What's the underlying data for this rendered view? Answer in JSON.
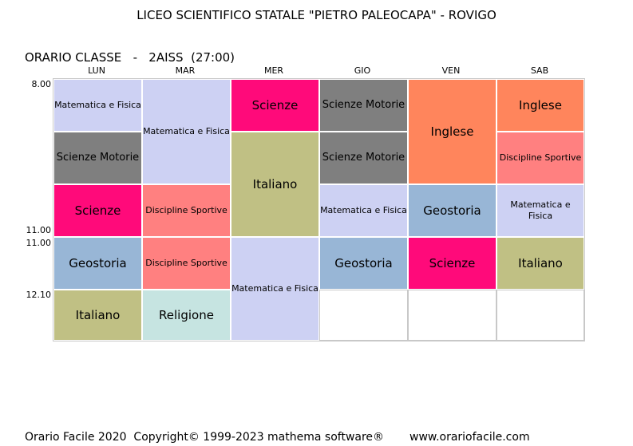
{
  "header": {
    "title": "LICEO SCIENTIFICO STATALE \"PIETRO PALEOCAPA\" - ROVIGO",
    "subtitle": "ORARIO CLASSE   -   2AISS  (27:00)"
  },
  "days": [
    "LUN",
    "MAR",
    "MER",
    "GIO",
    "VEN",
    "SAB"
  ],
  "times": {
    "start": "8.00",
    "end_first": "11.00",
    "start_second": "11.00",
    "later": "12.10"
  },
  "colors": {
    "matfis": "#cdd1f3",
    "motorie": "#7f7f7f",
    "scienze": "#ff0a7a",
    "sportive": "#ff8080",
    "geostoria": "#98b6d6",
    "italiano": "#c0c084",
    "religione": "#c6e4e1",
    "inglese": "#ff855c"
  },
  "schedule": {
    "lun": [
      "Matematica e Fisica",
      "Scienze  Motorie",
      "Scienze",
      "Geostoria",
      "Italiano"
    ],
    "mar": [
      "Matematica e Fisica",
      "Discipline Sportive",
      "Discipline Sportive",
      "Religione"
    ],
    "mer": [
      "Scienze",
      "Italiano",
      "Matematica e Fisica"
    ],
    "gio": [
      "Scienze  Motorie",
      "Scienze  Motorie",
      "Matematica e Fisica",
      "Geostoria"
    ],
    "ven": [
      "Inglese",
      "Geostoria",
      "Scienze"
    ],
    "sab": [
      "Inglese",
      "Discipline Sportive",
      "Matematica e Fisica",
      "Italiano"
    ]
  },
  "footer": {
    "left": "Orario Facile 2020  Copyright© 1999-2023 mathema software®",
    "url": "www.orariofacile.com"
  }
}
